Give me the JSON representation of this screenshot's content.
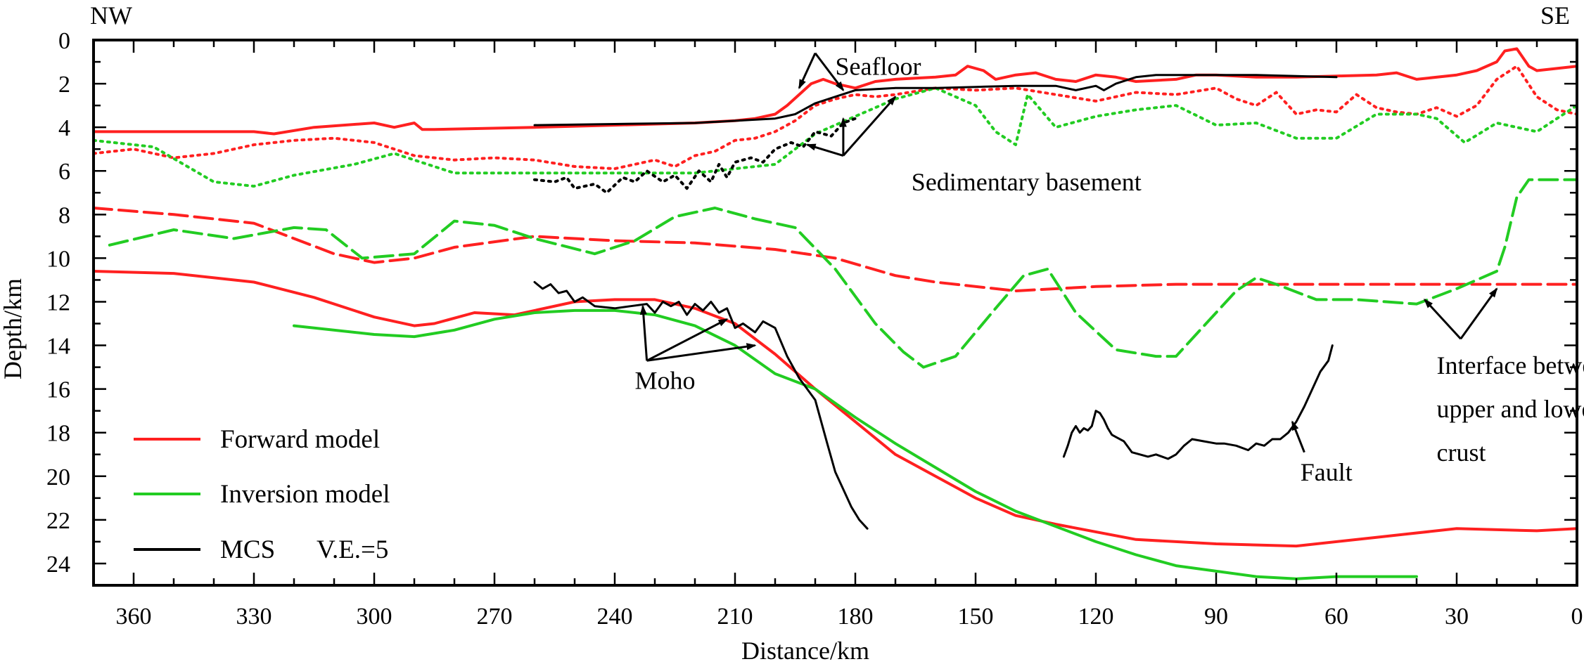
{
  "chart_data": {
    "type": "line",
    "orientation_labels": {
      "left": "NW",
      "right": "SE"
    },
    "xlabel": "Distance/km",
    "ylabel": "Depth/km",
    "xlim": [
      370,
      0
    ],
    "ylim": [
      0,
      25
    ],
    "x_direction": "reversed",
    "y_direction": "downward",
    "x_ticks": [
      360,
      330,
      300,
      270,
      240,
      210,
      180,
      150,
      120,
      90,
      60,
      30,
      0
    ],
    "y_ticks": [
      0,
      2,
      4,
      6,
      8,
      10,
      12,
      14,
      16,
      18,
      20,
      22,
      24
    ],
    "grid": false,
    "vertical_exaggeration": "V.E.=5",
    "legend": {
      "placement": "bottom-left",
      "entries": [
        {
          "label": "Forward model",
          "color": "#ff2020"
        },
        {
          "label": "Inversion model",
          "color": "#22cc22"
        },
        {
          "label": "MCS",
          "color": "#000000"
        }
      ]
    },
    "annotations": [
      {
        "id": "seafloor",
        "text": "Seafloor",
        "x": 185,
        "y": 1.6
      },
      {
        "id": "sed-base",
        "text": "Sedimentary basement",
        "x": 166,
        "y": 6.9
      },
      {
        "id": "moho",
        "text": "Moho",
        "x": 235,
        "y": 16.0
      },
      {
        "id": "interface-1",
        "text": "Interface between",
        "x": 35,
        "y": 15.3
      },
      {
        "id": "interface-2",
        "text": "upper and lower",
        "x": 35,
        "y": 17.3
      },
      {
        "id": "interface-3",
        "text": "crust",
        "x": 35,
        "y": 19.3
      },
      {
        "id": "fault",
        "text": "Fault",
        "x": 69,
        "y": 20.2
      }
    ],
    "arrows": [
      {
        "target": "seafloor",
        "from": [
          190,
          0.6
        ],
        "to": [
          194,
          2.2
        ]
      },
      {
        "target": "seafloor",
        "from": [
          190,
          0.6
        ],
        "to": [
          183,
          2.3
        ]
      },
      {
        "target": "sed-base",
        "from": [
          183,
          5.3
        ],
        "to": [
          170,
          2.6
        ]
      },
      {
        "target": "sed-base",
        "from": [
          183,
          5.3
        ],
        "to": [
          183,
          3.6
        ]
      },
      {
        "target": "sed-base",
        "from": [
          183,
          5.3
        ],
        "to": [
          192,
          4.8
        ]
      },
      {
        "target": "moho",
        "from": [
          232,
          14.7
        ],
        "to": [
          233,
          12.2
        ]
      },
      {
        "target": "moho",
        "from": [
          232,
          14.7
        ],
        "to": [
          212,
          12.8
        ]
      },
      {
        "target": "moho",
        "from": [
          232,
          14.7
        ],
        "to": [
          205,
          14.0
        ]
      },
      {
        "target": "interface",
        "from": [
          29,
          13.7
        ],
        "to": [
          38,
          11.9
        ]
      },
      {
        "target": "interface",
        "from": [
          29,
          13.7
        ],
        "to": [
          20,
          11.4
        ]
      },
      {
        "target": "fault",
        "from": [
          68,
          18.9
        ],
        "to": [
          71,
          17.5
        ]
      }
    ],
    "series": [
      {
        "name": "Forward model",
        "layer": "Seafloor",
        "color": "#ff2020",
        "style": "solid",
        "width": 4,
        "x": [
          370,
          330,
          325,
          315,
          300,
          295,
          290,
          288,
          285,
          260,
          240,
          220,
          215,
          210,
          205,
          200,
          197,
          194,
          191,
          188,
          185,
          180,
          175,
          170,
          165,
          160,
          155,
          152,
          148,
          145,
          140,
          135,
          130,
          125,
          120,
          115,
          110,
          100,
          95,
          90,
          80,
          70,
          60,
          50,
          45,
          40,
          30,
          25,
          20,
          18,
          15,
          12,
          10,
          5,
          0
        ],
        "y": [
          4.2,
          4.2,
          4.3,
          4.0,
          3.8,
          4.0,
          3.8,
          4.1,
          4.1,
          4.0,
          3.9,
          3.8,
          3.75,
          3.7,
          3.6,
          3.4,
          3.0,
          2.5,
          2.0,
          1.8,
          2.0,
          2.2,
          1.9,
          1.8,
          1.75,
          1.7,
          1.6,
          1.2,
          1.4,
          1.8,
          1.6,
          1.5,
          1.8,
          1.9,
          1.6,
          1.7,
          1.9,
          1.8,
          1.6,
          1.6,
          1.7,
          1.7,
          1.65,
          1.6,
          1.5,
          1.8,
          1.6,
          1.4,
          1.0,
          0.5,
          0.4,
          1.2,
          1.4,
          1.3,
          1.2
        ]
      },
      {
        "name": "Forward model",
        "layer": "Sedimentary basement",
        "color": "#ff2020",
        "style": "dotted",
        "width": 4,
        "x": [
          370,
          360,
          350,
          340,
          330,
          320,
          310,
          300,
          290,
          280,
          270,
          260,
          250,
          240,
          230,
          225,
          220,
          215,
          210,
          205,
          200,
          195,
          190,
          185,
          180,
          175,
          170,
          160,
          150,
          140,
          130,
          120,
          110,
          100,
          90,
          85,
          80,
          75,
          70,
          65,
          60,
          55,
          50,
          45,
          40,
          35,
          30,
          25,
          20,
          15,
          10,
          5,
          0
        ],
        "y": [
          5.2,
          5.0,
          5.4,
          5.2,
          4.8,
          4.6,
          4.5,
          4.7,
          5.3,
          5.5,
          5.4,
          5.5,
          5.8,
          5.9,
          5.5,
          5.8,
          5.3,
          5.1,
          4.6,
          4.5,
          4.2,
          3.7,
          3.0,
          2.7,
          2.5,
          2.6,
          2.5,
          2.2,
          2.3,
          2.2,
          2.5,
          2.8,
          2.4,
          2.5,
          2.2,
          2.7,
          3.0,
          2.4,
          3.4,
          3.2,
          3.3,
          2.5,
          3.1,
          3.3,
          3.4,
          3.1,
          3.5,
          3.0,
          1.8,
          1.2,
          2.6,
          3.2,
          3.4
        ]
      },
      {
        "name": "Forward model",
        "layer": "Interface between upper and lower crust",
        "color": "#ff2020",
        "style": "dashed",
        "width": 4,
        "x": [
          370,
          350,
          330,
          310,
          300,
          290,
          280,
          260,
          240,
          220,
          200,
          185,
          170,
          160,
          140,
          120,
          100,
          80,
          60,
          40,
          20,
          0
        ],
        "y": [
          7.7,
          8.0,
          8.4,
          9.8,
          10.2,
          10.0,
          9.5,
          9.0,
          9.2,
          9.3,
          9.6,
          10.0,
          10.8,
          11.1,
          11.5,
          11.3,
          11.2,
          11.2,
          11.2,
          11.2,
          11.2,
          11.2
        ]
      },
      {
        "name": "Forward model",
        "layer": "Moho",
        "color": "#ff2020",
        "style": "solid",
        "width": 4,
        "x": [
          370,
          350,
          330,
          315,
          300,
          290,
          285,
          275,
          265,
          260,
          250,
          240,
          230,
          220,
          210,
          200,
          190,
          180,
          170,
          160,
          150,
          140,
          130,
          110,
          90,
          70,
          50,
          30,
          10,
          0
        ],
        "y": [
          10.6,
          10.7,
          11.1,
          11.8,
          12.7,
          13.1,
          13.0,
          12.5,
          12.6,
          12.4,
          12.0,
          11.9,
          11.9,
          12.3,
          13.0,
          14.4,
          16.0,
          17.5,
          19.0,
          20.0,
          21.0,
          21.8,
          22.2,
          22.9,
          23.1,
          23.2,
          22.8,
          22.4,
          22.5,
          22.4
        ]
      },
      {
        "name": "Inversion model",
        "layer": "Sedimentary basement",
        "color": "#22cc22",
        "style": "dotted",
        "width": 4,
        "x": [
          370,
          355,
          340,
          330,
          320,
          305,
          295,
          280,
          260,
          240,
          220,
          200,
          190,
          180,
          170,
          160,
          150,
          145,
          140,
          137,
          130,
          120,
          110,
          100,
          90,
          80,
          70,
          60,
          50,
          40,
          35,
          28,
          20,
          15,
          10,
          5,
          0
        ],
        "y": [
          4.6,
          4.9,
          6.5,
          6.7,
          6.2,
          5.7,
          5.2,
          6.1,
          6.1,
          6.1,
          6.1,
          5.7,
          4.3,
          3.5,
          2.7,
          2.2,
          3.0,
          4.2,
          4.8,
          2.5,
          4.0,
          3.5,
          3.2,
          3.0,
          3.9,
          3.8,
          4.5,
          4.5,
          3.4,
          3.4,
          3.6,
          4.7,
          3.8,
          4.0,
          4.2,
          3.6,
          3.0
        ]
      },
      {
        "name": "Inversion model",
        "layer": "Interface between upper and lower crust",
        "color": "#22cc22",
        "style": "dashed",
        "width": 4,
        "x": [
          366,
          350,
          335,
          320,
          312,
          303,
          290,
          280,
          270,
          260,
          245,
          235,
          225,
          215,
          205,
          195,
          185,
          175,
          168,
          163,
          155,
          145,
          138,
          132,
          125,
          115,
          105,
          100,
          95,
          85,
          80,
          75,
          65,
          55,
          40,
          30,
          20,
          18,
          15,
          12,
          8,
          5,
          0
        ],
        "y": [
          9.4,
          8.7,
          9.1,
          8.6,
          8.7,
          10.0,
          9.8,
          8.3,
          8.5,
          9.1,
          9.8,
          9.2,
          8.1,
          7.7,
          8.2,
          8.6,
          10.5,
          13.0,
          14.3,
          15.0,
          14.5,
          12.3,
          10.8,
          10.5,
          12.5,
          14.2,
          14.5,
          14.5,
          13.5,
          11.5,
          10.9,
          11.2,
          11.9,
          11.9,
          12.1,
          11.4,
          10.6,
          9.5,
          7.2,
          6.4,
          6.4,
          6.4,
          6.4
        ]
      },
      {
        "name": "Inversion model",
        "layer": "Moho",
        "color": "#22cc22",
        "style": "solid",
        "width": 4,
        "x": [
          320,
          300,
          290,
          280,
          270,
          260,
          250,
          240,
          230,
          220,
          210,
          200,
          190,
          180,
          170,
          160,
          150,
          140,
          130,
          120,
          110,
          100,
          80,
          70,
          60,
          40
        ],
        "y": [
          13.1,
          13.5,
          13.6,
          13.3,
          12.8,
          12.5,
          12.4,
          12.4,
          12.6,
          13.1,
          14.0,
          15.3,
          16.0,
          17.3,
          18.5,
          19.6,
          20.7,
          21.6,
          22.3,
          23.0,
          23.6,
          24.1,
          24.6,
          24.7,
          24.6,
          24.6
        ]
      },
      {
        "name": "MCS",
        "layer": "Seafloor",
        "color": "#000000",
        "style": "solid",
        "width": 3,
        "x": [
          260,
          240,
          220,
          200,
          195,
          190,
          185,
          180,
          170,
          160,
          150,
          140,
          130,
          125,
          120,
          118,
          115,
          110,
          105,
          100,
          90,
          80,
          70,
          60
        ],
        "y": [
          3.9,
          3.85,
          3.8,
          3.6,
          3.4,
          2.9,
          2.6,
          2.3,
          2.2,
          2.2,
          2.15,
          2.1,
          2.1,
          2.3,
          2.1,
          2.3,
          2.0,
          1.7,
          1.6,
          1.6,
          1.6,
          1.6,
          1.65,
          1.7
        ]
      },
      {
        "name": "MCS",
        "layer": "Sedimentary basement",
        "color": "#000000",
        "style": "dotted",
        "width": 4,
        "x": [
          260,
          255,
          252,
          250,
          245,
          242,
          238,
          235,
          232,
          228,
          225,
          222,
          219,
          216,
          214,
          212,
          210,
          206,
          203,
          200,
          196,
          193,
          190,
          186,
          183,
          180
        ],
        "y": [
          6.4,
          6.5,
          6.3,
          6.8,
          6.6,
          7.0,
          6.3,
          6.5,
          6.0,
          6.5,
          6.2,
          6.8,
          6.0,
          6.5,
          5.7,
          6.3,
          5.6,
          5.4,
          5.6,
          5.0,
          4.7,
          4.9,
          4.2,
          4.4,
          3.8,
          3.6
        ]
      },
      {
        "name": "MCS",
        "layer": "Moho",
        "color": "#000000",
        "style": "solid",
        "width": 3,
        "x": [
          260,
          258,
          256,
          254,
          252,
          250,
          248,
          245,
          240,
          236,
          232,
          230,
          228,
          226,
          224,
          222,
          220,
          218,
          216,
          214,
          212,
          210,
          208,
          205,
          203,
          200,
          197,
          194,
          190,
          187,
          185,
          183,
          181,
          179,
          177
        ],
        "y": [
          11.1,
          11.4,
          11.2,
          11.6,
          11.5,
          12.0,
          11.8,
          12.2,
          12.3,
          12.2,
          12.1,
          12.5,
          12.0,
          12.2,
          12.0,
          12.6,
          12.1,
          12.4,
          12.0,
          12.5,
          12.3,
          13.2,
          13.0,
          13.4,
          12.9,
          13.2,
          14.5,
          15.5,
          16.5,
          18.5,
          19.8,
          20.6,
          21.4,
          22.0,
          22.4
        ]
      },
      {
        "name": "MCS",
        "layer": "Fault",
        "color": "#000000",
        "style": "solid",
        "width": 3,
        "x": [
          128,
          127,
          126,
          125,
          124,
          123,
          122,
          121,
          120,
          119,
          118,
          117,
          116,
          115,
          113,
          111,
          109,
          107,
          105,
          102,
          100,
          98,
          96,
          93,
          90,
          88,
          85,
          82,
          80,
          78,
          76,
          74,
          72,
          70,
          68,
          66,
          64,
          62,
          61
        ],
        "y": [
          19.1,
          18.6,
          18.0,
          17.7,
          18.0,
          17.8,
          17.9,
          17.7,
          17.0,
          17.1,
          17.4,
          17.8,
          18.1,
          18.2,
          18.4,
          18.9,
          19.0,
          19.1,
          19.0,
          19.2,
          19.0,
          18.6,
          18.3,
          18.4,
          18.5,
          18.5,
          18.6,
          18.8,
          18.5,
          18.6,
          18.3,
          18.3,
          18.0,
          17.5,
          16.8,
          16.0,
          15.2,
          14.7,
          14.0
        ]
      }
    ]
  },
  "ui": {
    "legend_ve": "V.E.=5"
  }
}
